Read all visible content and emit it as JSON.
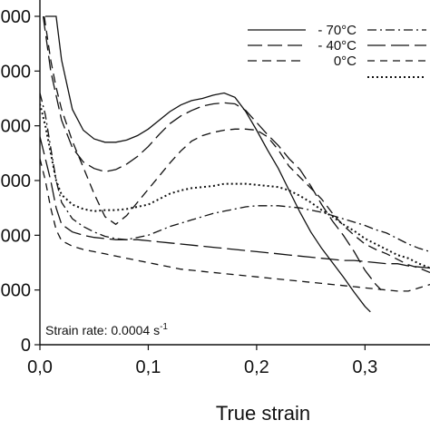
{
  "chart_data": {
    "type": "line",
    "xlabel": "True strain",
    "ylabel": "",
    "xlim": [
      0,
      0.36
    ],
    "ylim": [
      0,
      300
    ],
    "x_ticks": [
      0,
      0.1,
      0.2,
      0.3
    ],
    "x_tick_labels": [
      "0,0",
      "0,1",
      "0,2",
      "0,3"
    ],
    "y_ticks": [
      0,
      50,
      100,
      150,
      200,
      250,
      300
    ],
    "y_tick_labels": [
      "0",
      "000",
      "000",
      "000",
      "000",
      "000",
      "000"
    ],
    "grid": false,
    "legend_position": "top-right",
    "annotation": {
      "text": "Strain rate: 0.0004 s",
      "superscript": "-1"
    },
    "series": [
      {
        "name": "- 70°C",
        "dash": "solid",
        "points": [
          [
            0.005,
            300
          ],
          [
            0.015,
            300
          ],
          [
            0.02,
            260
          ],
          [
            0.03,
            215
          ],
          [
            0.04,
            196
          ],
          [
            0.05,
            188
          ],
          [
            0.06,
            185
          ],
          [
            0.07,
            185
          ],
          [
            0.08,
            187
          ],
          [
            0.09,
            191
          ],
          [
            0.1,
            197
          ],
          [
            0.11,
            205
          ],
          [
            0.12,
            213
          ],
          [
            0.13,
            219
          ],
          [
            0.14,
            223
          ],
          [
            0.15,
            225
          ],
          [
            0.16,
            228
          ],
          [
            0.17,
            230
          ],
          [
            0.18,
            226
          ],
          [
            0.19,
            213
          ],
          [
            0.2,
            196
          ],
          [
            0.21,
            178
          ],
          [
            0.22,
            161
          ],
          [
            0.23,
            141
          ],
          [
            0.24,
            121
          ],
          [
            0.25,
            103
          ],
          [
            0.26,
            88
          ],
          [
            0.27,
            75
          ],
          [
            0.28,
            62
          ],
          [
            0.29,
            48
          ],
          [
            0.3,
            35
          ],
          [
            0.305,
            30
          ]
        ]
      },
      {
        "name": "- 40°C",
        "dash": "long",
        "points": [
          [
            0.003,
            300
          ],
          [
            0.01,
            250
          ],
          [
            0.02,
            205
          ],
          [
            0.03,
            180
          ],
          [
            0.04,
            167
          ],
          [
            0.05,
            161
          ],
          [
            0.06,
            158
          ],
          [
            0.07,
            160
          ],
          [
            0.08,
            165
          ],
          [
            0.09,
            172
          ],
          [
            0.1,
            181
          ],
          [
            0.11,
            192
          ],
          [
            0.12,
            202
          ],
          [
            0.13,
            209
          ],
          [
            0.14,
            214
          ],
          [
            0.15,
            218
          ],
          [
            0.16,
            220
          ],
          [
            0.17,
            221
          ],
          [
            0.18,
            220
          ],
          [
            0.19,
            214
          ],
          [
            0.2,
            203
          ],
          [
            0.21,
            192
          ],
          [
            0.22,
            182
          ],
          [
            0.23,
            170
          ],
          [
            0.24,
            160
          ],
          [
            0.25,
            145
          ],
          [
            0.26,
            128
          ],
          [
            0.27,
            113
          ],
          [
            0.28,
            100
          ],
          [
            0.29,
            85
          ],
          [
            0.3,
            68
          ],
          [
            0.31,
            55
          ],
          [
            0.315,
            50
          ]
        ]
      },
      {
        "name": "0°C",
        "dash": "medium",
        "points": [
          [
            0.004,
            300
          ],
          [
            0.01,
            260
          ],
          [
            0.015,
            235
          ],
          [
            0.02,
            215
          ],
          [
            0.03,
            186
          ],
          [
            0.04,
            162
          ],
          [
            0.05,
            138
          ],
          [
            0.06,
            117
          ],
          [
            0.07,
            110
          ],
          [
            0.08,
            118
          ],
          [
            0.09,
            130
          ],
          [
            0.1,
            142
          ],
          [
            0.11,
            154
          ],
          [
            0.12,
            166
          ],
          [
            0.13,
            177
          ],
          [
            0.14,
            186
          ],
          [
            0.15,
            191
          ],
          [
            0.16,
            194
          ],
          [
            0.17,
            196
          ],
          [
            0.18,
            197
          ],
          [
            0.19,
            197
          ],
          [
            0.2,
            196
          ],
          [
            0.21,
            190
          ],
          [
            0.22,
            178
          ],
          [
            0.23,
            163
          ],
          [
            0.24,
            153
          ],
          [
            0.25,
            143
          ],
          [
            0.26,
            133
          ],
          [
            0.27,
            120
          ],
          [
            0.28,
            109
          ],
          [
            0.29,
            100
          ],
          [
            0.3,
            92
          ],
          [
            0.31,
            87
          ],
          [
            0.32,
            83
          ],
          [
            0.33,
            78
          ],
          [
            0.34,
            73
          ],
          [
            0.35,
            70
          ],
          [
            0.36,
            66
          ]
        ]
      },
      {
        "name": "",
        "dash": "dotted",
        "points": [
          [
            0.0,
            220
          ],
          [
            0.005,
            200
          ],
          [
            0.01,
            175
          ],
          [
            0.015,
            150
          ],
          [
            0.02,
            137
          ],
          [
            0.03,
            128
          ],
          [
            0.04,
            124
          ],
          [
            0.05,
            122
          ],
          [
            0.06,
            123
          ],
          [
            0.07,
            123
          ],
          [
            0.08,
            124
          ],
          [
            0.09,
            126
          ],
          [
            0.1,
            128
          ],
          [
            0.11,
            133
          ],
          [
            0.12,
            138
          ],
          [
            0.13,
            141
          ],
          [
            0.14,
            143
          ],
          [
            0.15,
            144
          ],
          [
            0.16,
            145
          ],
          [
            0.17,
            147
          ],
          [
            0.18,
            147
          ],
          [
            0.19,
            147
          ],
          [
            0.2,
            146
          ],
          [
            0.21,
            145
          ],
          [
            0.22,
            144
          ],
          [
            0.23,
            141
          ],
          [
            0.24,
            136
          ],
          [
            0.25,
            130
          ],
          [
            0.26,
            123
          ],
          [
            0.27,
            117
          ],
          [
            0.28,
            110
          ],
          [
            0.29,
            104
          ],
          [
            0.3,
            97
          ],
          [
            0.31,
            92
          ],
          [
            0.32,
            87
          ],
          [
            0.33,
            82
          ],
          [
            0.34,
            79
          ],
          [
            0.35,
            74
          ],
          [
            0.36,
            70
          ]
        ]
      },
      {
        "name": "",
        "dash": "dashdot",
        "points": [
          [
            0.0,
            230
          ],
          [
            0.005,
            210
          ],
          [
            0.01,
            180
          ],
          [
            0.015,
            150
          ],
          [
            0.02,
            130
          ],
          [
            0.03,
            115
          ],
          [
            0.04,
            108
          ],
          [
            0.05,
            103
          ],
          [
            0.06,
            99
          ],
          [
            0.07,
            97
          ],
          [
            0.08,
            96
          ],
          [
            0.09,
            98
          ],
          [
            0.1,
            100
          ],
          [
            0.11,
            104
          ],
          [
            0.12,
            108
          ],
          [
            0.13,
            111
          ],
          [
            0.14,
            114
          ],
          [
            0.15,
            117
          ],
          [
            0.16,
            120
          ],
          [
            0.17,
            122
          ],
          [
            0.18,
            124
          ],
          [
            0.19,
            126
          ],
          [
            0.2,
            127
          ],
          [
            0.21,
            127
          ],
          [
            0.22,
            127
          ],
          [
            0.23,
            126
          ],
          [
            0.24,
            125
          ],
          [
            0.25,
            123
          ],
          [
            0.26,
            121
          ],
          [
            0.27,
            118
          ],
          [
            0.28,
            115
          ],
          [
            0.29,
            112
          ],
          [
            0.3,
            109
          ],
          [
            0.31,
            105
          ],
          [
            0.32,
            102
          ],
          [
            0.33,
            97
          ],
          [
            0.34,
            92
          ],
          [
            0.35,
            88
          ],
          [
            0.36,
            85
          ]
        ]
      },
      {
        "name": "",
        "dash": "longdash",
        "points": [
          [
            0.0,
            190
          ],
          [
            0.005,
            170
          ],
          [
            0.01,
            150
          ],
          [
            0.015,
            125
          ],
          [
            0.02,
            110
          ],
          [
            0.03,
            103
          ],
          [
            0.04,
            100
          ],
          [
            0.05,
            98
          ],
          [
            0.06,
            97
          ],
          [
            0.07,
            96
          ],
          [
            0.08,
            96
          ],
          [
            0.09,
            96
          ],
          [
            0.1,
            95
          ],
          [
            0.11,
            94
          ],
          [
            0.12,
            93
          ],
          [
            0.13,
            92
          ],
          [
            0.14,
            91
          ],
          [
            0.15,
            90
          ],
          [
            0.16,
            89
          ],
          [
            0.17,
            88
          ],
          [
            0.18,
            87
          ],
          [
            0.19,
            86
          ],
          [
            0.2,
            85
          ],
          [
            0.21,
            84
          ],
          [
            0.22,
            83
          ],
          [
            0.23,
            82
          ],
          [
            0.24,
            81
          ],
          [
            0.25,
            80
          ],
          [
            0.26,
            79
          ],
          [
            0.27,
            78
          ],
          [
            0.28,
            77
          ],
          [
            0.29,
            77
          ],
          [
            0.3,
            76
          ],
          [
            0.31,
            75
          ],
          [
            0.32,
            74
          ],
          [
            0.33,
            74
          ],
          [
            0.34,
            72
          ],
          [
            0.35,
            71
          ],
          [
            0.36,
            70
          ]
        ]
      },
      {
        "name": "",
        "dash": "short",
        "points": [
          [
            0.0,
            170
          ],
          [
            0.005,
            150
          ],
          [
            0.01,
            125
          ],
          [
            0.015,
            105
          ],
          [
            0.02,
            95
          ],
          [
            0.03,
            90
          ],
          [
            0.04,
            87
          ],
          [
            0.05,
            85
          ],
          [
            0.06,
            83
          ],
          [
            0.07,
            81
          ],
          [
            0.08,
            79
          ],
          [
            0.09,
            77
          ],
          [
            0.1,
            75
          ],
          [
            0.11,
            73
          ],
          [
            0.12,
            71
          ],
          [
            0.13,
            69
          ],
          [
            0.14,
            68
          ],
          [
            0.15,
            67
          ],
          [
            0.16,
            66
          ],
          [
            0.17,
            65
          ],
          [
            0.18,
            64
          ],
          [
            0.19,
            63
          ],
          [
            0.2,
            62
          ],
          [
            0.21,
            61
          ],
          [
            0.22,
            60
          ],
          [
            0.23,
            59
          ],
          [
            0.24,
            58
          ],
          [
            0.25,
            57
          ],
          [
            0.26,
            56
          ],
          [
            0.27,
            55
          ],
          [
            0.28,
            54
          ],
          [
            0.29,
            53
          ],
          [
            0.3,
            52
          ],
          [
            0.31,
            51
          ],
          [
            0.32,
            50
          ],
          [
            0.33,
            49
          ],
          [
            0.34,
            49
          ],
          [
            0.35,
            52
          ],
          [
            0.36,
            55
          ]
        ]
      }
    ]
  }
}
